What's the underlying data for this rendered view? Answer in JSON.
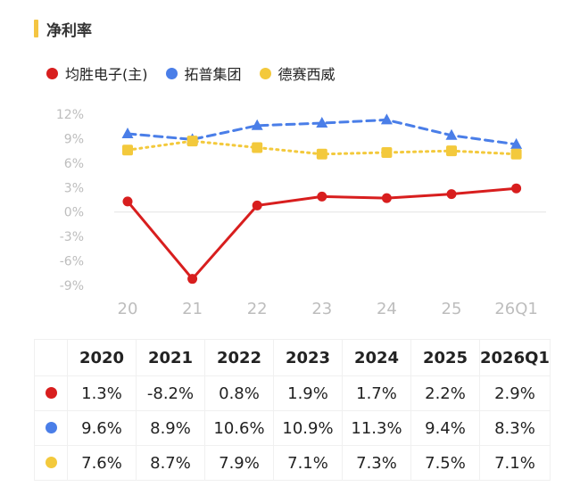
{
  "header": {
    "title": "净利率"
  },
  "colors": {
    "red": "#d81e1e",
    "blue": "#4a7ee8",
    "yellow": "#f3c93c",
    "title_accent": "#f4c542"
  },
  "chart_data": {
    "type": "line",
    "title": "净利率",
    "xlabel": "",
    "ylabel": "",
    "categories": [
      "20",
      "21",
      "22",
      "23",
      "24",
      "25",
      "26Q1"
    ],
    "yticks": [
      "12%",
      "9%",
      "6%",
      "3%",
      "0%",
      "-3%",
      "-6%",
      "-9%"
    ],
    "ylim": [
      -9,
      12
    ],
    "legend_position": "top-left",
    "series": [
      {
        "name": "均胜电子(主)",
        "color": "#d81e1e",
        "style": "solid",
        "marker": "circle",
        "values": [
          1.3,
          -8.2,
          0.8,
          1.9,
          1.7,
          2.2,
          2.9
        ]
      },
      {
        "name": "拓普集团",
        "color": "#4a7ee8",
        "style": "dashed",
        "marker": "triangle",
        "values": [
          9.6,
          8.9,
          10.6,
          10.9,
          11.3,
          9.4,
          8.3
        ]
      },
      {
        "name": "德赛西威",
        "color": "#f3c93c",
        "style": "dotted",
        "marker": "square",
        "values": [
          7.6,
          8.7,
          7.9,
          7.1,
          7.3,
          7.5,
          7.1
        ]
      }
    ]
  },
  "table": {
    "headers": [
      "2020",
      "2021",
      "2022",
      "2023",
      "2024",
      "2025",
      "2026Q1"
    ],
    "rows": [
      [
        "1.3%",
        "-8.2%",
        "0.8%",
        "1.9%",
        "1.7%",
        "2.2%",
        "2.9%"
      ],
      [
        "9.6%",
        "8.9%",
        "10.6%",
        "10.9%",
        "11.3%",
        "9.4%",
        "8.3%"
      ],
      [
        "7.6%",
        "8.7%",
        "7.9%",
        "7.1%",
        "7.3%",
        "7.5%",
        "7.1%"
      ]
    ]
  }
}
